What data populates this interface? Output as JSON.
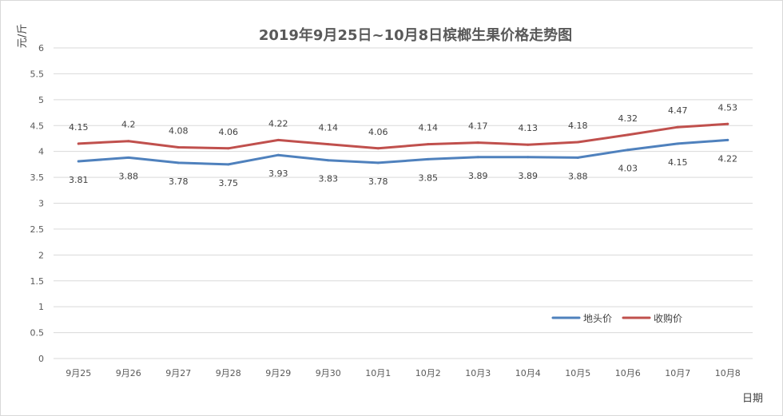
{
  "chart_data": {
    "type": "line",
    "title": "2019年9月25日~10月8日槟榔生果价格走势图",
    "ylabel": "元/斤",
    "xlabel": "日期",
    "ylim": [
      0,
      6
    ],
    "y_ticks": [
      "0",
      "0.5",
      "1",
      "1.5",
      "2",
      "2.5",
      "3",
      "3.5",
      "4",
      "4.5",
      "5",
      "5.5",
      "6"
    ],
    "grid": true,
    "legend_position": "bottom-right",
    "categories": [
      "9月25",
      "9月26",
      "9月27",
      "9月28",
      "9月29",
      "9月30",
      "10月1",
      "10月2",
      "10月3",
      "10月4",
      "10月5",
      "10月6",
      "10月7",
      "10月8"
    ],
    "series": [
      {
        "name": "地头价",
        "color": "#4f81bd",
        "values": [
          3.81,
          3.88,
          3.78,
          3.75,
          3.93,
          3.83,
          3.78,
          3.85,
          3.89,
          3.89,
          3.88,
          4.03,
          4.15,
          4.22
        ],
        "labels": [
          "3.81",
          "3.88",
          "3.78",
          "3.75",
          "3.93",
          "3.83",
          "3.78",
          "3.85",
          "3.89",
          "3.89",
          "3.88",
          "4.03",
          "4.15",
          "4.22"
        ]
      },
      {
        "name": "收购价",
        "color": "#c0504d",
        "values": [
          4.15,
          4.2,
          4.08,
          4.06,
          4.22,
          4.14,
          4.06,
          4.14,
          4.17,
          4.13,
          4.18,
          4.32,
          4.47,
          4.53
        ],
        "labels": [
          "4.15",
          "4.2",
          "4.08",
          "4.06",
          "4.22",
          "4.14",
          "4.06",
          "4.14",
          "4.17",
          "4.13",
          "4.18",
          "4.32",
          "4.47",
          "4.53"
        ]
      }
    ]
  }
}
